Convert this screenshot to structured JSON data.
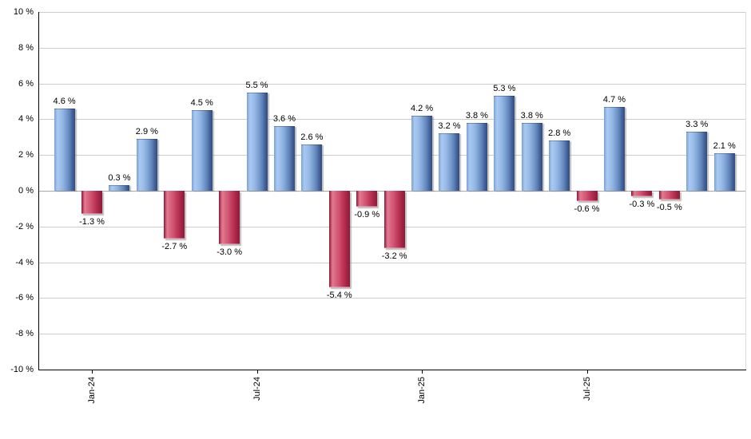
{
  "chart_data": {
    "type": "bar",
    "title": "",
    "xlabel": "",
    "ylabel": "",
    "ylim": [
      -10,
      10
    ],
    "ytick_step": 2,
    "grid": true,
    "legend_position": "none",
    "y_tick_labels": [
      "10 %",
      "8 %",
      "6 %",
      "4 %",
      "2 %",
      "0 %",
      "-2 %",
      "-4 %",
      "-6 %",
      "-8 %",
      "-10 %"
    ],
    "x_ticks": [
      {
        "label": "Jan-24",
        "bar_index": 1
      },
      {
        "label": "Jul-24",
        "bar_index": 7
      },
      {
        "label": "Jan-25",
        "bar_index": 13
      },
      {
        "label": "Jul-25",
        "bar_index": 19
      }
    ],
    "bars": [
      {
        "value": 4.6,
        "label": "4.6 %"
      },
      {
        "value": -1.3,
        "label": "-1.3 %"
      },
      {
        "value": 0.3,
        "label": "0.3 %"
      },
      {
        "value": 2.9,
        "label": "2.9 %"
      },
      {
        "value": -2.7,
        "label": "-2.7 %"
      },
      {
        "value": 4.5,
        "label": "4.5 %"
      },
      {
        "value": -3.0,
        "label": "-3.0 %"
      },
      {
        "value": 5.5,
        "label": "5.5 %"
      },
      {
        "value": 3.6,
        "label": "3.6 %"
      },
      {
        "value": 2.6,
        "label": "2.6 %"
      },
      {
        "value": -5.4,
        "label": "-5.4 %"
      },
      {
        "value": -0.9,
        "label": "-0.9 %"
      },
      {
        "value": -3.2,
        "label": "-3.2 %"
      },
      {
        "value": 4.2,
        "label": "4.2 %"
      },
      {
        "value": 3.2,
        "label": "3.2 %"
      },
      {
        "value": 3.8,
        "label": "3.8 %"
      },
      {
        "value": 5.3,
        "label": "5.3 %"
      },
      {
        "value": 3.8,
        "label": "3.8 %"
      },
      {
        "value": 2.8,
        "label": "2.8 %"
      },
      {
        "value": -0.6,
        "label": "-0.6 %"
      },
      {
        "value": 4.7,
        "label": "4.7 %"
      },
      {
        "value": -0.3,
        "label": "-0.3 %"
      },
      {
        "value": -0.5,
        "label": "-0.5 %"
      },
      {
        "value": 3.3,
        "label": "3.3 %"
      },
      {
        "value": 2.1,
        "label": "2.1 %"
      }
    ],
    "colors": {
      "positive_bar": "#8fb3e2",
      "negative_bar": "#c23a5c",
      "gridline": "#cccccc",
      "zero_line": "#a8a8a8",
      "axis": "#000000",
      "label_text": "#000000",
      "background": "#ffffff"
    }
  }
}
